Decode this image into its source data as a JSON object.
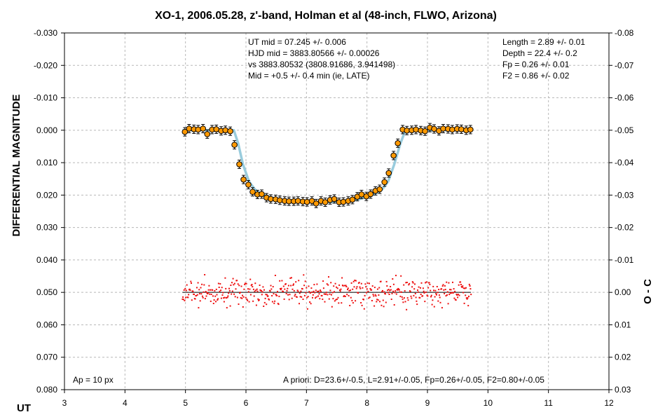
{
  "chart_data": {
    "type": "scatter",
    "title": "XO-1, 2006.05.28, z'-band, Holman et al (48-inch, FLWO, Arizona)",
    "xlabel": "UT",
    "ylabel": "DIFFERENTIAL MAGNITUDE",
    "y2label": "O - C",
    "xlim": [
      3,
      12
    ],
    "ylim": [
      0.08,
      -0.03
    ],
    "y2lim": [
      0.03,
      -0.08
    ],
    "grid": true,
    "x_ticks": [
      "3",
      "4",
      "5",
      "6",
      "7",
      "8",
      "9",
      "10",
      "11",
      "12"
    ],
    "y_ticks": [
      "-0.030",
      "-0.020",
      "-0.010",
      "0.000",
      "0.010",
      "0.020",
      "0.030",
      "0.040",
      "0.050",
      "0.060",
      "0.070",
      "0.080"
    ],
    "y2_ticks": [
      "-0.08",
      "-0.07",
      "-0.06",
      "-0.05",
      "-0.04",
      "-0.03",
      "-0.02",
      "-0.01",
      "0.00",
      "0.01",
      "0.02",
      "0.03"
    ],
    "annotations": {
      "top_center": [
        "UT mid = 07.245 +/- 0.006",
        "HJD mid = 3883.80566 +/- 0.00026",
        "vs 3883.80532  (3808.91686, 3.941498)",
        "Mid = +0.5 +/- 0.4 min (ie, LATE)"
      ],
      "top_right": [
        "Length = 2.89 +/- 0.01",
        "Depth = 22.4 +/- 0.2",
        "Fp = 0.26 +/- 0.01",
        "F2 = 0.86 +/- 0.02"
      ],
      "bottom_left": "Ap = 10 px",
      "bottom_right": "A priori: D=23.6+/-0.5, L=2.91+/-0.05, Fp=0.26+/-0.05, F2=0.80+/-0.05"
    },
    "series": [
      {
        "role": "binned",
        "color": "#ff9900",
        "x": [
          4.99,
          5.06,
          5.14,
          5.21,
          5.29,
          5.36,
          5.44,
          5.51,
          5.59,
          5.66,
          5.74,
          5.81,
          5.89,
          5.96,
          6.04,
          6.11,
          6.19,
          6.26,
          6.34,
          6.41,
          6.49,
          6.56,
          6.64,
          6.71,
          6.79,
          6.86,
          6.94,
          7.01,
          7.09,
          7.16,
          7.24,
          7.31,
          7.39,
          7.46,
          7.54,
          7.61,
          7.69,
          7.76,
          7.84,
          7.91,
          7.99,
          8.06,
          8.14,
          8.21,
          8.29,
          8.36,
          8.44,
          8.51,
          8.59,
          8.66,
          8.74,
          8.81,
          8.89,
          8.96,
          9.04,
          9.11,
          9.19,
          9.26,
          9.34,
          9.41,
          9.49,
          9.56,
          9.64,
          9.71
        ],
        "y": [
          0.0005,
          -0.0005,
          -0.0003,
          -0.0002,
          -0.0005,
          0.0012,
          -0.0002,
          -0.0003,
          0.0002,
          0.0,
          0.0003,
          0.0045,
          0.0105,
          0.0152,
          0.0168,
          0.019,
          0.0198,
          0.0197,
          0.0208,
          0.0212,
          0.0213,
          0.0216,
          0.0218,
          0.0219,
          0.0219,
          0.0218,
          0.022,
          0.0221,
          0.0218,
          0.0226,
          0.0218,
          0.0222,
          0.0215,
          0.0212,
          0.0222,
          0.0221,
          0.0218,
          0.0214,
          0.0205,
          0.0198,
          0.0204,
          0.0197,
          0.0187,
          0.0182,
          0.016,
          0.0132,
          0.0078,
          0.004,
          -0.0002,
          0.0001,
          0.0,
          -0.0002,
          0.0001,
          0.0003,
          -0.0008,
          -0.0004,
          0.0002,
          -0.0005,
          -0.0004,
          -0.0002,
          -0.0004,
          -0.0003,
          0.0,
          -0.0002
        ]
      },
      {
        "role": "model",
        "color": "#99ccdd",
        "x": [
          4.95,
          5.8,
          5.87,
          5.95,
          6.05,
          6.15,
          6.25,
          6.4,
          6.6,
          6.8,
          7.0,
          7.25,
          7.5,
          7.7,
          7.9,
          8.1,
          8.25,
          8.35,
          8.45,
          8.55,
          8.62,
          8.68,
          9.72
        ],
        "y": [
          0.0,
          0.0,
          0.004,
          0.0105,
          0.0158,
          0.0183,
          0.0196,
          0.0207,
          0.0215,
          0.0219,
          0.0221,
          0.0222,
          0.0221,
          0.0218,
          0.0211,
          0.0199,
          0.0183,
          0.0158,
          0.0106,
          0.0042,
          0.0008,
          0.0,
          0.0
        ]
      }
    ]
  }
}
